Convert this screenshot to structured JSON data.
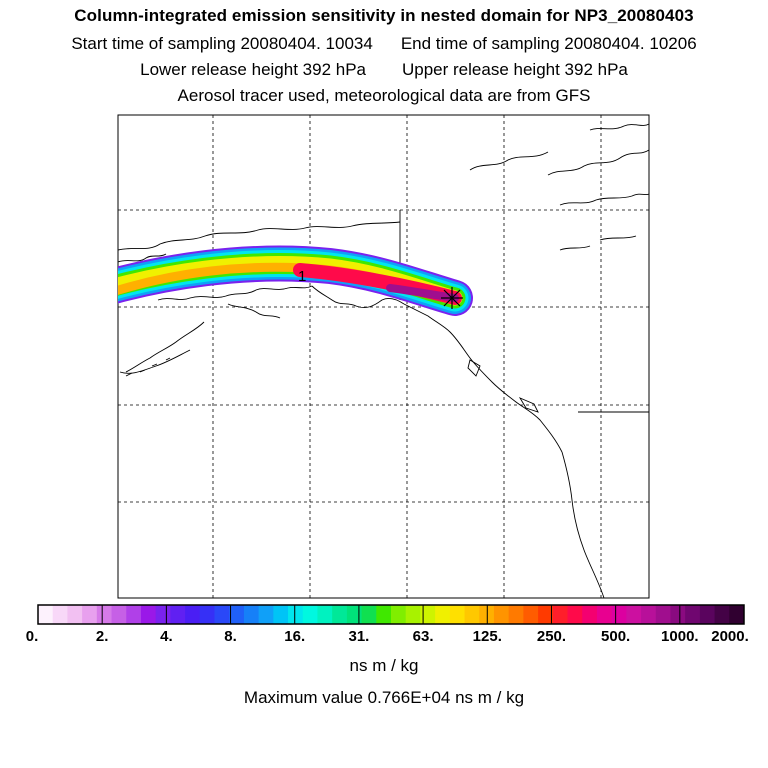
{
  "header": {
    "title": "Column-integrated emission sensitivity in nested domain for NP3_20080403",
    "start_time": "Start time of sampling 20080404. 10034",
    "end_time": "End time of sampling 20080404. 10206",
    "lower_release": "Lower release height  392 hPa",
    "upper_release": "Upper release height  392 hPa",
    "tracer_info": "Aerosol tracer used, meteorological data are from GFS"
  },
  "map": {
    "plume_label": "1",
    "release_marker": "star-icon"
  },
  "colorbar": {
    "tick_labels": [
      "0.",
      "2.",
      "4.",
      "8.",
      "16.",
      "31.",
      "63.",
      "125.",
      "250.",
      "500.",
      "1000.",
      "2000."
    ],
    "segment_colors": [
      "#fdf2fd",
      "#f8d8f8",
      "#f2c0f2",
      "#e8a0ee",
      "#d67ae8",
      "#c660e6",
      "#b040e8",
      "#9a18e8",
      "#7a22ee",
      "#6020f2",
      "#4a1ef4",
      "#3630f6",
      "#2a48f8",
      "#2060f8",
      "#1680f8",
      "#10a0f8",
      "#00c4f6",
      "#00e6ee",
      "#00f8e0",
      "#00f2c0",
      "#00e898",
      "#00e27a",
      "#10e050",
      "#40e800",
      "#80ee00",
      "#a8f200",
      "#cef400",
      "#f0f000",
      "#ffe000",
      "#ffc800",
      "#ffb000",
      "#ff9400",
      "#ff7a00",
      "#ff5c00",
      "#ff3a00",
      "#ff1e2a",
      "#ff0a4a",
      "#f40070",
      "#e80090",
      "#dc00a0",
      "#cc10a0",
      "#b8109a",
      "#a00e8e",
      "#8a0a80",
      "#700670",
      "#5a045e",
      "#440246",
      "#300030"
    ],
    "units": "ns m / kg"
  },
  "footer": {
    "max_value": "Maximum value  0.766E+04 ns m / kg"
  }
}
